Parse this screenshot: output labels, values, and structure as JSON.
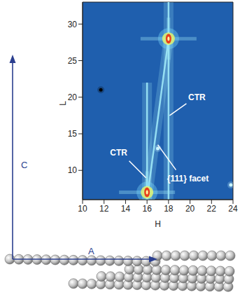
{
  "chart_data": {
    "type": "heatmap",
    "x_label": "H",
    "y_label": "L",
    "xlim": [
      10,
      24
    ],
    "xticks": [
      10,
      12,
      14,
      16,
      18,
      20,
      22,
      24
    ],
    "ylim": [
      6,
      33
    ],
    "yticks": [
      10,
      15,
      20,
      25,
      30
    ],
    "color": "#1f5fae",
    "streaks": [
      {
        "x": [
          16,
          16
        ],
        "y": [
          6,
          22
        ],
        "color": "#9ee8f7"
      },
      {
        "x": [
          18,
          18
        ],
        "y": [
          6,
          33
        ],
        "color": "#9ee8f7"
      },
      {
        "x": [
          16,
          18
        ],
        "y": [
          6,
          28
        ],
        "color": "#9ee8f7"
      }
    ],
    "peaks": {
      "x": [
        18,
        16
      ],
      "y": [
        28,
        7
      ]
    },
    "spots": {
      "x": [
        11.7,
        17,
        23.8
      ],
      "y": [
        21,
        13,
        8
      ],
      "colors": [
        "#000000",
        "#c8f4ff",
        "#c8f4ff"
      ]
    },
    "annotations": [
      {
        "text": "CTR",
        "x": 18.1,
        "y": 17.5
      },
      {
        "text": "CTR",
        "x": 15.9,
        "y": 9
      },
      {
        "text": "{111} facet",
        "x": 17,
        "y": 13.5
      }
    ]
  },
  "schematic": {
    "vertical_arrow": "C",
    "horizontal_arrow": "A"
  }
}
